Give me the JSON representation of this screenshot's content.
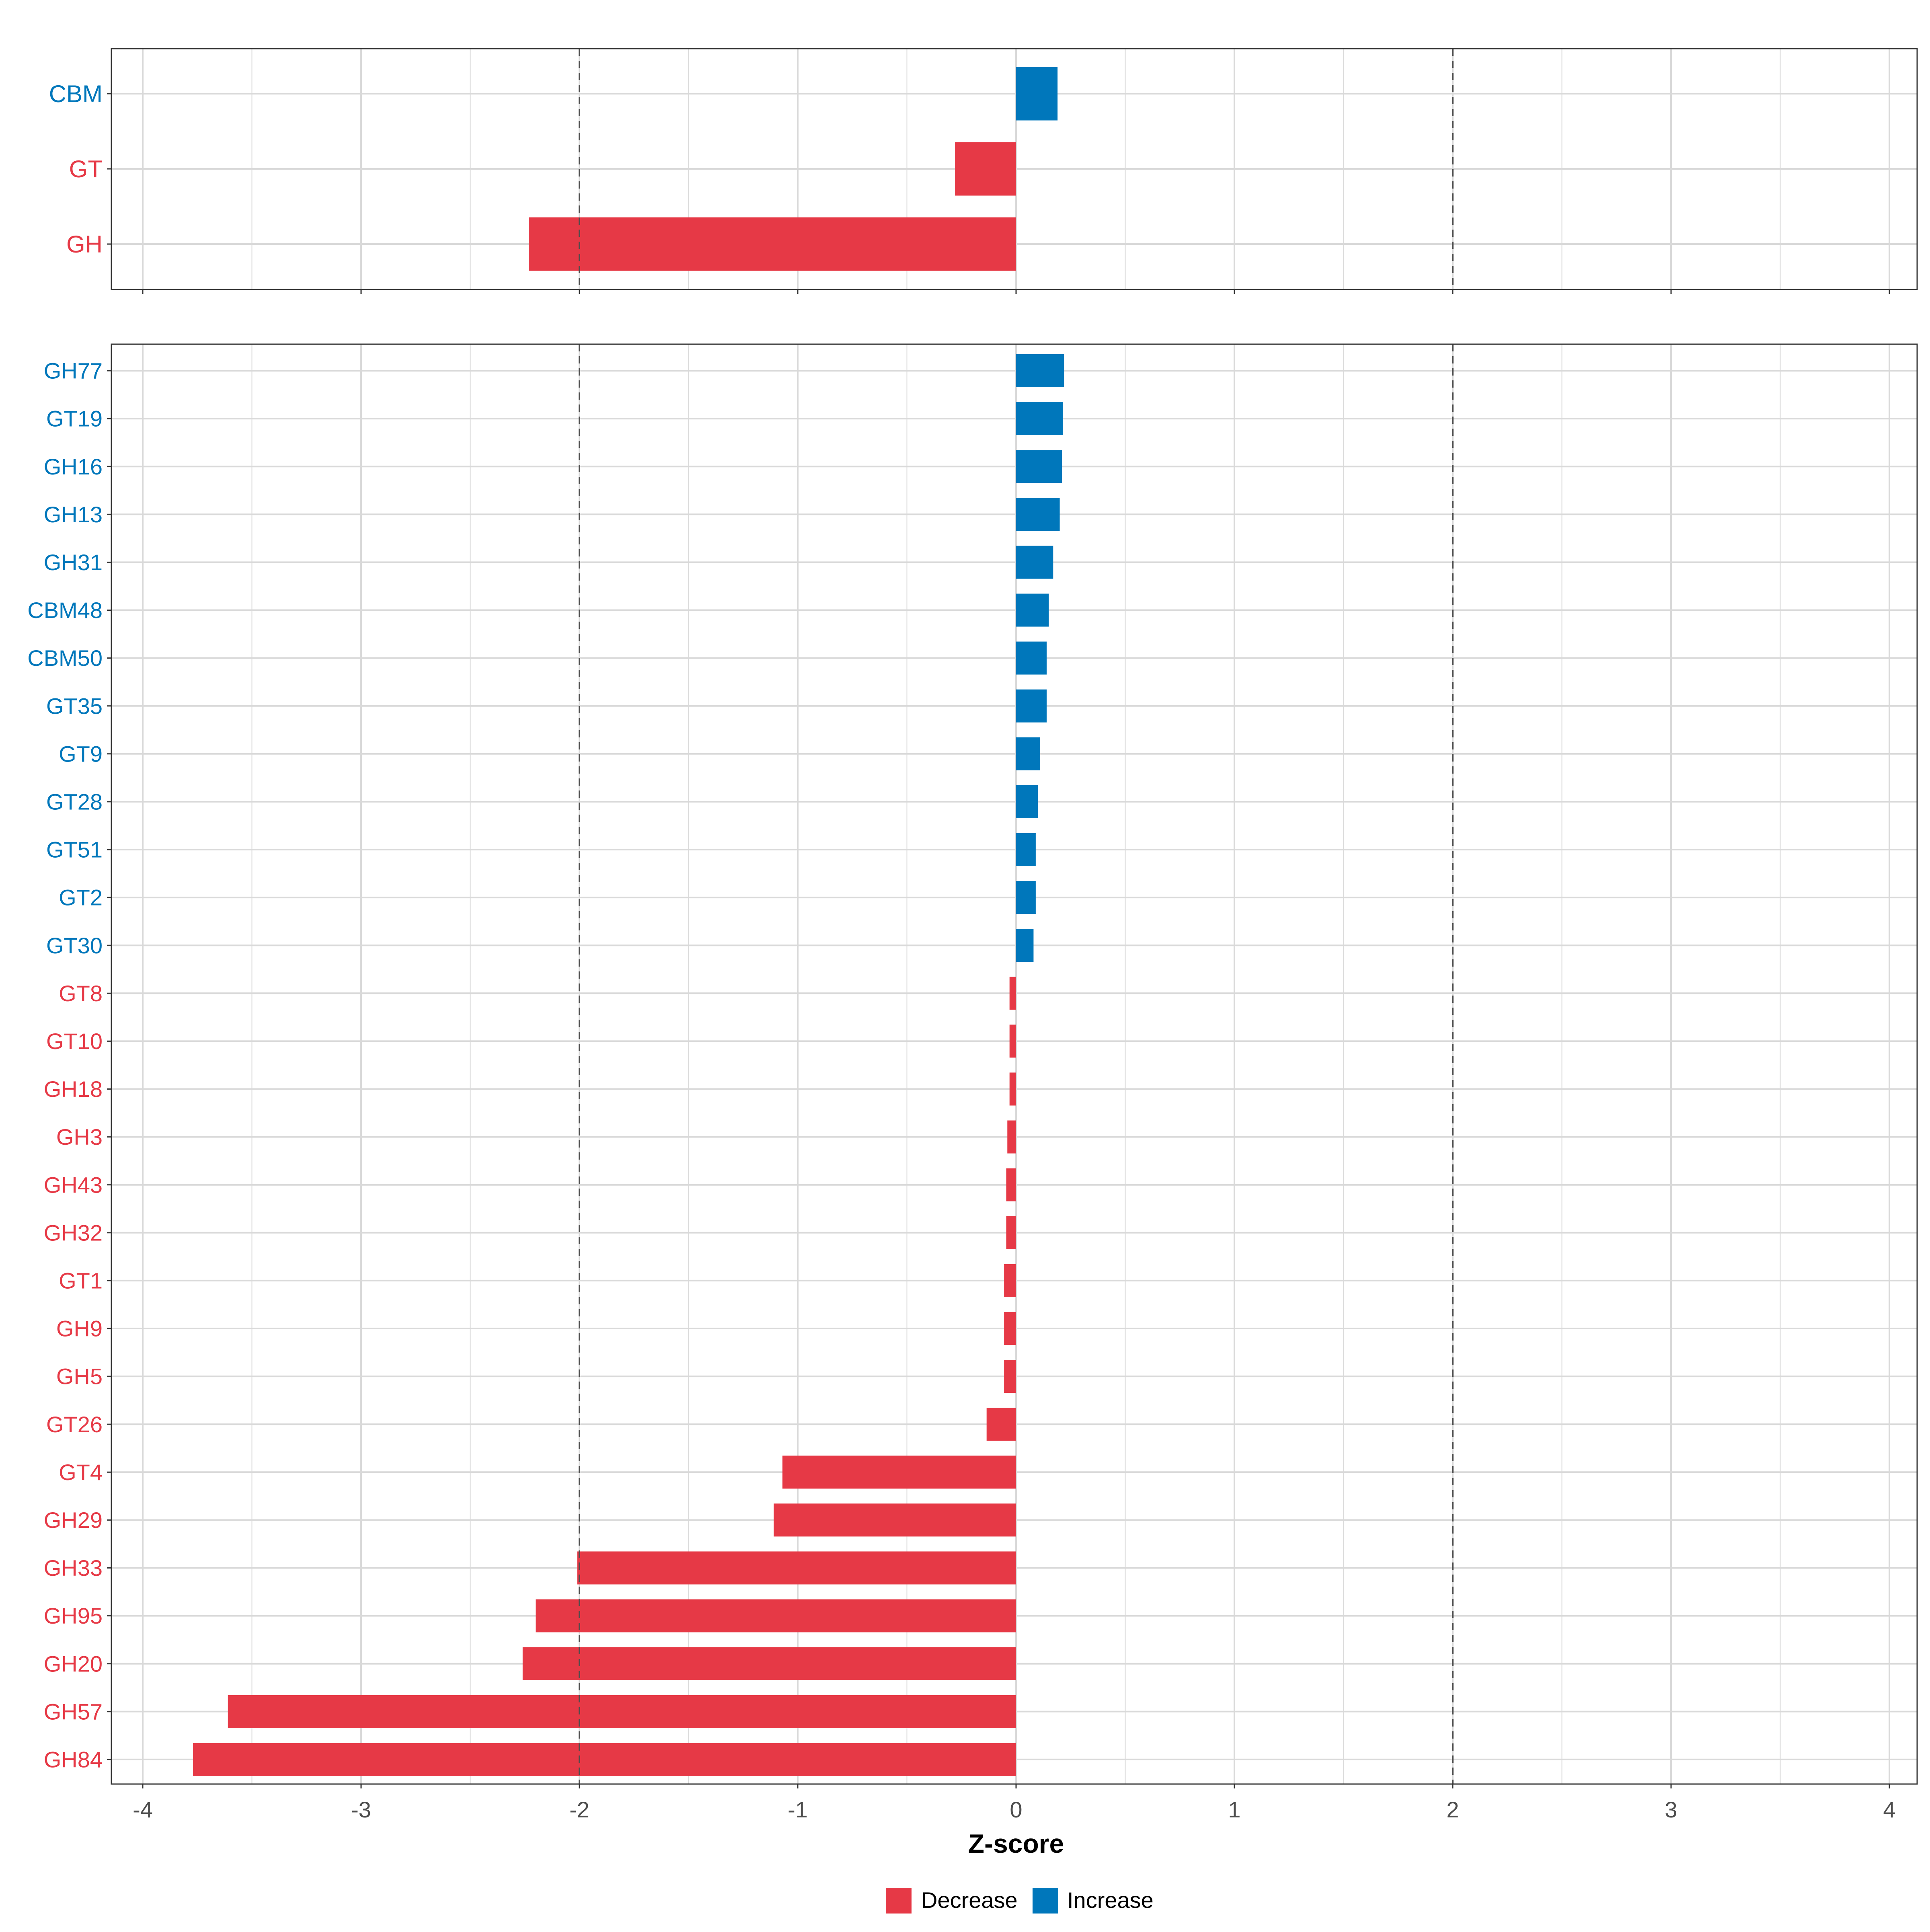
{
  "chart_data": [
    {
      "type": "bar",
      "orientation": "horizontal",
      "panel": "top",
      "categories": [
        "CBM",
        "GT",
        "GH"
      ],
      "values": [
        0.19,
        -0.28,
        -2.23
      ],
      "direction": [
        "Increase",
        "Decrease",
        "Decrease"
      ],
      "xlim": [
        -4,
        4
      ],
      "reference_lines": [
        -2,
        2
      ],
      "grid": true
    },
    {
      "type": "bar",
      "orientation": "horizontal",
      "panel": "bottom",
      "categories": [
        "GH77",
        "GT19",
        "GH16",
        "GH13",
        "GH31",
        "CBM48",
        "CBM50",
        "GT35",
        "GT9",
        "GT28",
        "GT51",
        "GT2",
        "GT30",
        "GT8",
        "GT10",
        "GH18",
        "GH3",
        "GH43",
        "GH32",
        "GT1",
        "GH9",
        "GH5",
        "GT26",
        "GT4",
        "GH29",
        "GH33",
        "GH95",
        "GH20",
        "GH57",
        "GH84"
      ],
      "values": [
        0.22,
        0.215,
        0.21,
        0.2,
        0.17,
        0.15,
        0.14,
        0.14,
        0.11,
        0.1,
        0.09,
        0.09,
        0.08,
        -0.03,
        -0.03,
        -0.03,
        -0.04,
        -0.045,
        -0.045,
        -0.055,
        -0.055,
        -0.055,
        -0.135,
        -1.07,
        -1.11,
        -2.01,
        -2.2,
        -2.26,
        -3.61,
        -3.77
      ],
      "direction": [
        "Increase",
        "Increase",
        "Increase",
        "Increase",
        "Increase",
        "Increase",
        "Increase",
        "Increase",
        "Increase",
        "Increase",
        "Increase",
        "Increase",
        "Increase",
        "Decrease",
        "Decrease",
        "Decrease",
        "Decrease",
        "Decrease",
        "Decrease",
        "Decrease",
        "Decrease",
        "Decrease",
        "Decrease",
        "Decrease",
        "Decrease",
        "Decrease",
        "Decrease",
        "Decrease",
        "Decrease",
        "Decrease"
      ],
      "xlim": [
        -4,
        4
      ],
      "xticks": [
        "-4",
        "-3",
        "-2",
        "-1",
        "0",
        "1",
        "2",
        "3",
        "4"
      ],
      "xlabel": "Z-score",
      "reference_lines": [
        -2,
        2
      ],
      "grid": true
    }
  ],
  "legend": {
    "placement": "bottom",
    "items": [
      {
        "label": "Decrease",
        "color": "#E63946"
      },
      {
        "label": "Increase",
        "color": "#0077BB"
      }
    ]
  },
  "colors": {
    "Decrease": "#E63946",
    "Increase": "#0077BB",
    "grid": "#D9D9D9",
    "axis_text": "#4D4D4D"
  }
}
